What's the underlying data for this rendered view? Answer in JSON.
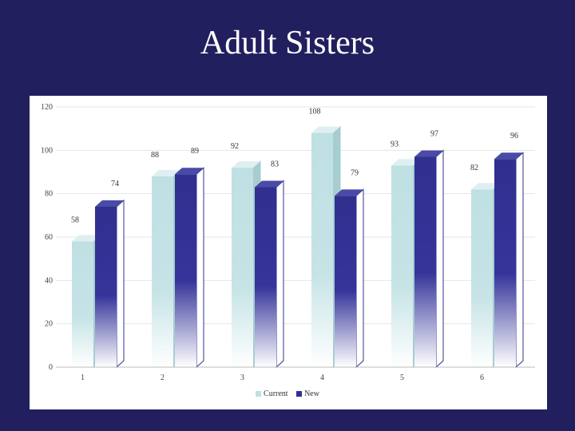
{
  "slide": {
    "title": "Adult Sisters"
  },
  "colors": {
    "background": "#211f5e",
    "current": "#bfe0e3",
    "new": "#30308f"
  },
  "chart_data": {
    "type": "bar",
    "title": "",
    "xlabel": "",
    "ylabel": "",
    "categories": [
      "1",
      "2",
      "3",
      "4",
      "5",
      "6"
    ],
    "series": [
      {
        "name": "Current",
        "values": [
          58,
          88,
          92,
          108,
          93,
          82
        ]
      },
      {
        "name": "New",
        "values": [
          74,
          89,
          83,
          79,
          97,
          96
        ]
      }
    ],
    "ylim": [
      0,
      120
    ],
    "yticks": [
      0,
      20,
      40,
      60,
      80,
      100,
      120
    ],
    "grid": true,
    "legend": "bottom"
  }
}
